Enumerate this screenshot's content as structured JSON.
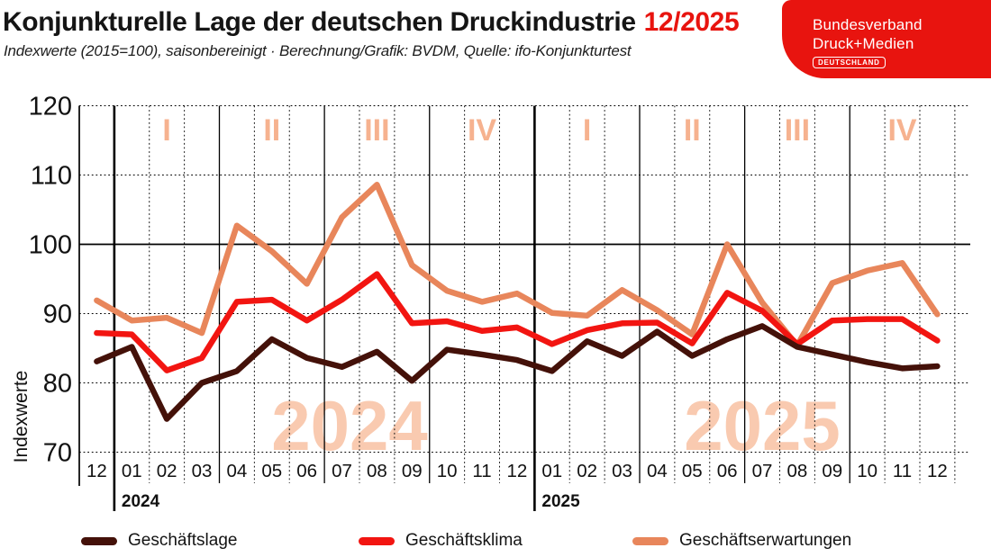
{
  "header": {
    "title": "Konjunkturelle Lage der deutschen Druckindustrie",
    "period": "12/2025",
    "subtitle": "Indexwerte (2015=100), saisonbereinigt · Berechnung/Grafik: BVDM, Quelle: ifo-Konjunkturtest"
  },
  "logo": {
    "line1": "Bundesverband",
    "line2": "Druck+Medien",
    "badge": "DEUTSCHLAND",
    "background": "#e8140f"
  },
  "chart_data": {
    "type": "line",
    "title": "Konjunkturelle Lage der deutschen Druckindustrie 12/2025",
    "ylabel": "Indexwerte",
    "ylim": [
      70,
      120
    ],
    "yticks": [
      120,
      110,
      100,
      90,
      80,
      70
    ],
    "solid_gridline_y": 100,
    "grid": true,
    "legend_position": "bottom",
    "x_labels": [
      "12",
      "01",
      "02",
      "03",
      "04",
      "05",
      "06",
      "07",
      "08",
      "09",
      "10",
      "11",
      "12",
      "01",
      "02",
      "03",
      "04",
      "05",
      "06",
      "07",
      "08",
      "09",
      "10",
      "11",
      "12"
    ],
    "year_labels": [
      "2024",
      "2025"
    ],
    "watermarks": [
      "2024",
      "2025"
    ],
    "quarter_labels": [
      "I",
      "II",
      "III",
      "IV",
      "I",
      "II",
      "III",
      "IV"
    ],
    "quarter_label_month_indices": [
      2,
      5,
      8,
      11,
      14,
      17,
      20,
      23
    ],
    "year_boundary_indices": [
      1,
      13
    ],
    "quarter_boundary_indices": [
      4,
      7,
      10,
      16,
      19,
      22
    ],
    "series": [
      {
        "name": "Geschäftslage",
        "key": "geschaeftslage",
        "color": "#441109",
        "values": [
          83.1,
          85.2,
          74.8,
          80.0,
          81.7,
          86.3,
          83.6,
          82.3,
          84.5,
          80.3,
          84.8,
          84.1,
          83.3,
          81.7,
          86.0,
          83.9,
          87.4,
          83.9,
          86.3,
          88.2,
          85.2,
          84.1,
          83.0,
          82.1,
          82.4
        ]
      },
      {
        "name": "Geschäftsklima",
        "key": "geschaeftsklima",
        "color": "#f21511",
        "values": [
          87.2,
          87.0,
          81.8,
          83.6,
          91.7,
          92.0,
          89.0,
          92.0,
          95.7,
          88.6,
          88.9,
          87.5,
          88.0,
          85.6,
          87.6,
          88.6,
          88.7,
          85.7,
          93.0,
          90.4,
          85.6,
          89.0,
          89.2,
          89.2,
          86.1
        ]
      },
      {
        "name": "Geschäftserwartungen",
        "key": "geschaeftserwartungen",
        "color": "#e8865b",
        "values": [
          91.9,
          89.0,
          89.4,
          87.2,
          102.7,
          99.0,
          94.3,
          103.9,
          108.6,
          97.0,
          93.3,
          91.7,
          92.9,
          90.1,
          89.7,
          93.4,
          90.5,
          87.0,
          100.0,
          91.6,
          85.4,
          94.4,
          96.2,
          97.3,
          89.9
        ]
      }
    ],
    "colors": {
      "quarter_label": "#f6b28f",
      "watermark": "#f9cab0",
      "axis": "#000000",
      "text": "#111111"
    }
  }
}
